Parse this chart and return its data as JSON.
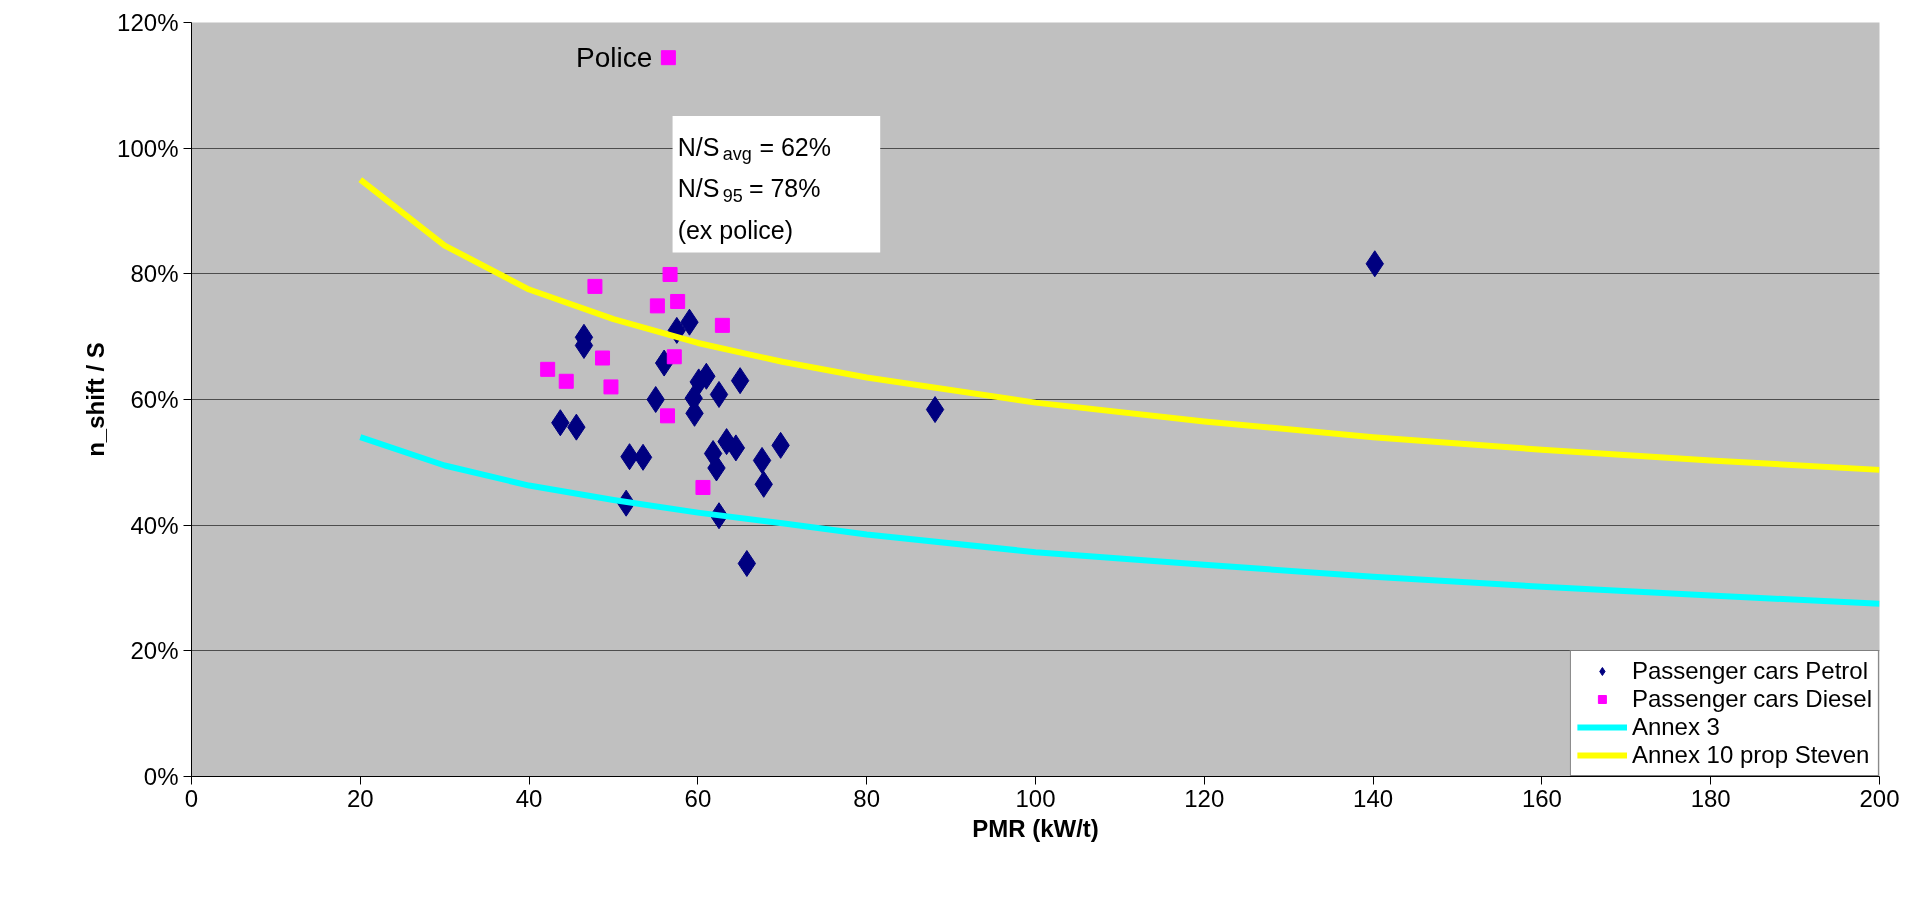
{
  "chart_data": {
    "type": "scatter",
    "xlabel": "PMR (kW/t)",
    "ylabel": "n_shift / S",
    "xlim": [
      0,
      200
    ],
    "xticks": [
      0,
      20,
      40,
      60,
      80,
      100,
      120,
      140,
      160,
      180,
      200
    ],
    "ylim": [
      0,
      120
    ],
    "yticks": [
      {
        "value": 0,
        "label": "0%"
      },
      {
        "value": 20,
        "label": "20%"
      },
      {
        "value": 40,
        "label": "40%"
      },
      {
        "value": 60,
        "label": "60%"
      },
      {
        "value": 80,
        "label": "80%"
      },
      {
        "value": 100,
        "label": "100%"
      },
      {
        "value": 120,
        "label": "120%"
      }
    ],
    "grid": "y",
    "legend": "bottom right",
    "series": [
      {
        "name": "Passenger cars Petrol",
        "marker": "diamond",
        "color": "#000080",
        "x": [
          46.5,
          46.5,
          43.7,
          45.6,
          55.0,
          56.0,
          57.5,
          59.0,
          51.9,
          53.5,
          51.5,
          59.5,
          59.6,
          60.1,
          61.0,
          62.5,
          65.0,
          63.4,
          64.5,
          61.8,
          62.2,
          67.6,
          69.8,
          67.8,
          62.5,
          65.8,
          88.1,
          140.2
        ],
        "values": [
          69.9,
          68.6,
          56.3,
          55.6,
          60.0,
          65.8,
          71.0,
          72.3,
          50.9,
          50.8,
          43.5,
          60.2,
          57.8,
          62.8,
          63.7,
          60.8,
          63.0,
          53.3,
          52.3,
          51.4,
          49.1,
          50.3,
          52.7,
          46.5,
          41.5,
          33.9,
          58.4,
          81.6
        ]
      },
      {
        "name": "Passenger cars Diesel",
        "marker": "square",
        "color": "#ff00ff",
        "x": [
          56.7,
          47.8,
          55.2,
          57.6,
          62.9,
          48.7,
          57.2,
          42.2,
          44.4,
          49.7,
          56.4,
          60.6,
          56.5
        ],
        "values": [
          79.9,
          78.0,
          74.9,
          75.6,
          71.8,
          66.6,
          66.8,
          64.8,
          62.9,
          62.0,
          57.4,
          46.0,
          114.4
        ]
      },
      {
        "name": "Annex 3",
        "type": "line",
        "color": "#00ffff",
        "x": [
          20,
          30,
          40,
          50,
          60,
          70,
          80,
          100,
          120,
          140,
          160,
          180,
          200
        ],
        "values": [
          54.0,
          49.5,
          46.3,
          44.0,
          42.0,
          40.3,
          38.5,
          35.7,
          33.7,
          31.8,
          30.2,
          28.8,
          27.5
        ]
      },
      {
        "name": "Annex 10 prop Steven",
        "type": "line",
        "color": "#ffff00",
        "x": [
          20,
          30,
          40,
          50,
          60,
          70,
          80,
          100,
          120,
          140,
          160,
          180,
          200
        ],
        "values": [
          95.0,
          84.5,
          77.5,
          72.8,
          69.0,
          66.0,
          63.5,
          59.5,
          56.5,
          54.0,
          52.0,
          50.3,
          48.8
        ]
      }
    ],
    "annotations": [
      {
        "text": "Police",
        "x": 56.5,
        "y": 114.4
      },
      "N/S$_{avg}$ = 62%\nN/S$_{95}$ = 78%\n(ex police)"
    ]
  }
}
